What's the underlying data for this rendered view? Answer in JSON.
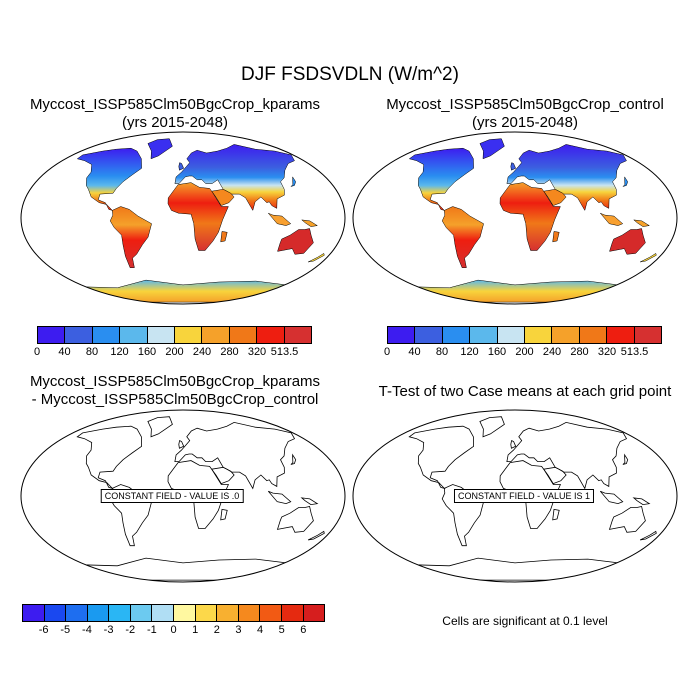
{
  "main_title": "DJF FSDSVDLN (W/m^2)",
  "panels": [
    {
      "title_line1": "Myccost_ISSP585Clm50BgcCrop_kparams",
      "title_line2": "(yrs 2015-2048)",
      "filled": true
    },
    {
      "title_line1": "Myccost_ISSP585Clm50BgcCrop_control",
      "title_line2": "(yrs 2015-2048)",
      "filled": true
    },
    {
      "title_line1": "Myccost_ISSP585Clm50BgcCrop_kparams",
      "title_line2": "- Myccost_ISSP585Clm50BgcCrop_control",
      "filled": false,
      "field_label": "CONSTANT FIELD - VALUE IS .0"
    },
    {
      "title_line1": "T-Test of two Case means at each grid point",
      "title_line2": "",
      "filled": false,
      "field_label": "CONSTANT FIELD - VALUE IS 1"
    }
  ],
  "colorbar_abs": {
    "labels": [
      "0",
      "40",
      "80",
      "120",
      "160",
      "200",
      "240",
      "280",
      "320",
      "513.5"
    ],
    "colors": [
      "#3d1cf0",
      "#3c5fe0",
      "#2a8ef0",
      "#5bb8ec",
      "#c8e4f2",
      "#f8d43c",
      "#f5a12a",
      "#f07818",
      "#ee1e10",
      "#d63030"
    ]
  },
  "colorbar_diff": {
    "labels": [
      "-6",
      "-5",
      "-4",
      "-3",
      "-2",
      "-1",
      "0",
      "1",
      "2",
      "3",
      "4",
      "5",
      "6"
    ],
    "colors": [
      "#3d1cf0",
      "#1a48f0",
      "#1e6ef0",
      "#1a9af0",
      "#2ab6f4",
      "#6ccaf0",
      "#b0def4",
      "#fff8a0",
      "#fcd84a",
      "#f8b030",
      "#f5891e",
      "#f25a14",
      "#e52a10",
      "#d61e1e"
    ]
  },
  "significance_note": "Cells are significant at 0.1 level"
}
